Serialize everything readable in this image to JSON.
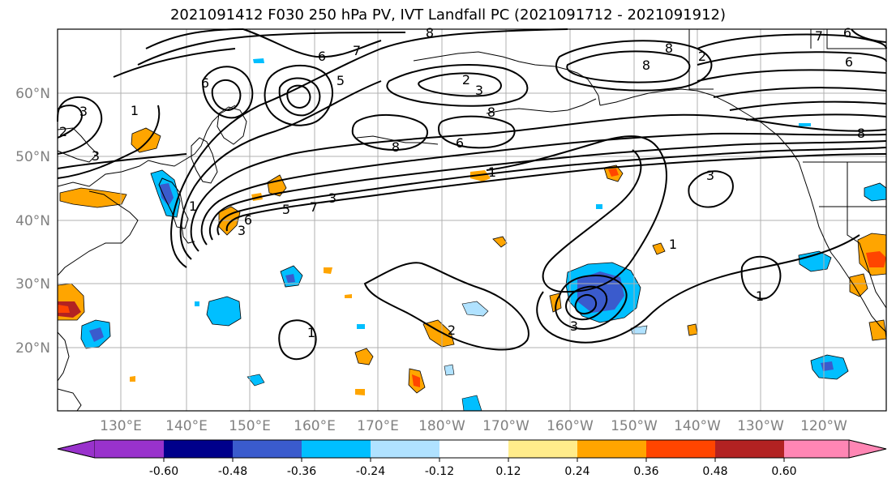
{
  "title": "2021091412 F030 250 hPa PV, IVT Landfall PC (2021091712 - 2021091912)",
  "map": {
    "lat_labels": [
      "60°N",
      "50°N",
      "40°N",
      "30°N",
      "20°N"
    ],
    "lon_labels": [
      "130°E",
      "140°E",
      "150°E",
      "160°E",
      "170°E",
      "180°W",
      "170°W",
      "160°W",
      "150°W",
      "140°W",
      "130°W",
      "120°W"
    ],
    "contour_labels": [
      "8",
      "6",
      "7",
      "5",
      "2",
      "3",
      "1",
      "8",
      "6",
      "2",
      "8",
      "6",
      "7",
      "8",
      "6",
      "8",
      "2",
      "1",
      "3",
      "1",
      "5",
      "7",
      "6",
      "3",
      "3",
      "1",
      "1",
      "3",
      "2",
      "1",
      "8",
      "6",
      "3",
      "3"
    ]
  },
  "colorbar": {
    "colors": [
      "#9932cc",
      "#00008b",
      "#3a5bcd",
      "#00bfff",
      "#b0e2ff",
      "#ffffff",
      "#ffec8b",
      "#ffa500",
      "#ff4500",
      "#b22222",
      "#ff86b4"
    ],
    "tick_labels": [
      "-0.60",
      "-0.48",
      "-0.36",
      "-0.24",
      "-0.12",
      "0.12",
      "0.24",
      "0.36",
      "0.48",
      "0.60"
    ]
  },
  "colors": {
    "grid": "#b0b0b0",
    "tick_text": "#808080"
  }
}
